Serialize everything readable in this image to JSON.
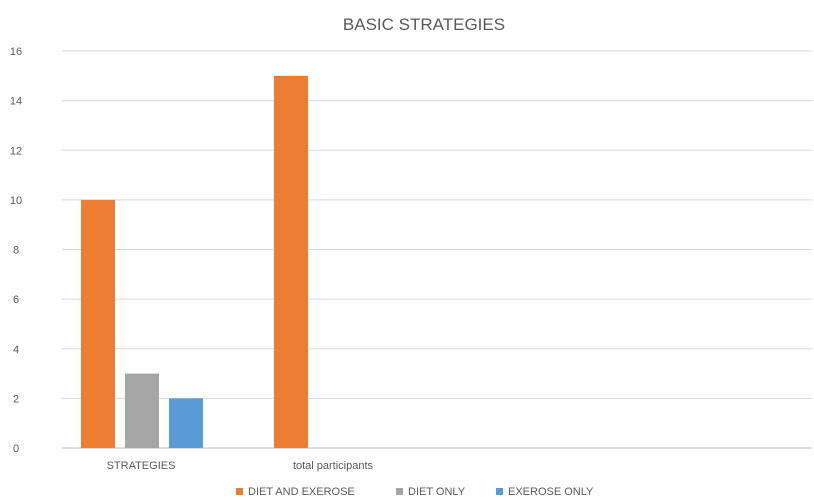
{
  "chart_data": {
    "type": "bar",
    "title": "BASIC STRATEGIES",
    "xlabel": "",
    "ylabel": "",
    "ylim": [
      0,
      16
    ],
    "yticks": [
      0,
      2,
      4,
      6,
      8,
      10,
      12,
      14,
      16
    ],
    "grid": true,
    "legend_position": "bottom",
    "categories": [
      "STRATEGIES",
      "total participants"
    ],
    "series": [
      {
        "name": "DIET AND EXEROSE",
        "color": "#ED7D31",
        "values": [
          10,
          15
        ]
      },
      {
        "name": "DIET ONLY",
        "color": "#A5A5A5",
        "values": [
          3,
          null
        ]
      },
      {
        "name": "EXEROSE ONLY",
        "color": "#5B9BD5",
        "values": [
          2,
          null
        ]
      }
    ]
  }
}
